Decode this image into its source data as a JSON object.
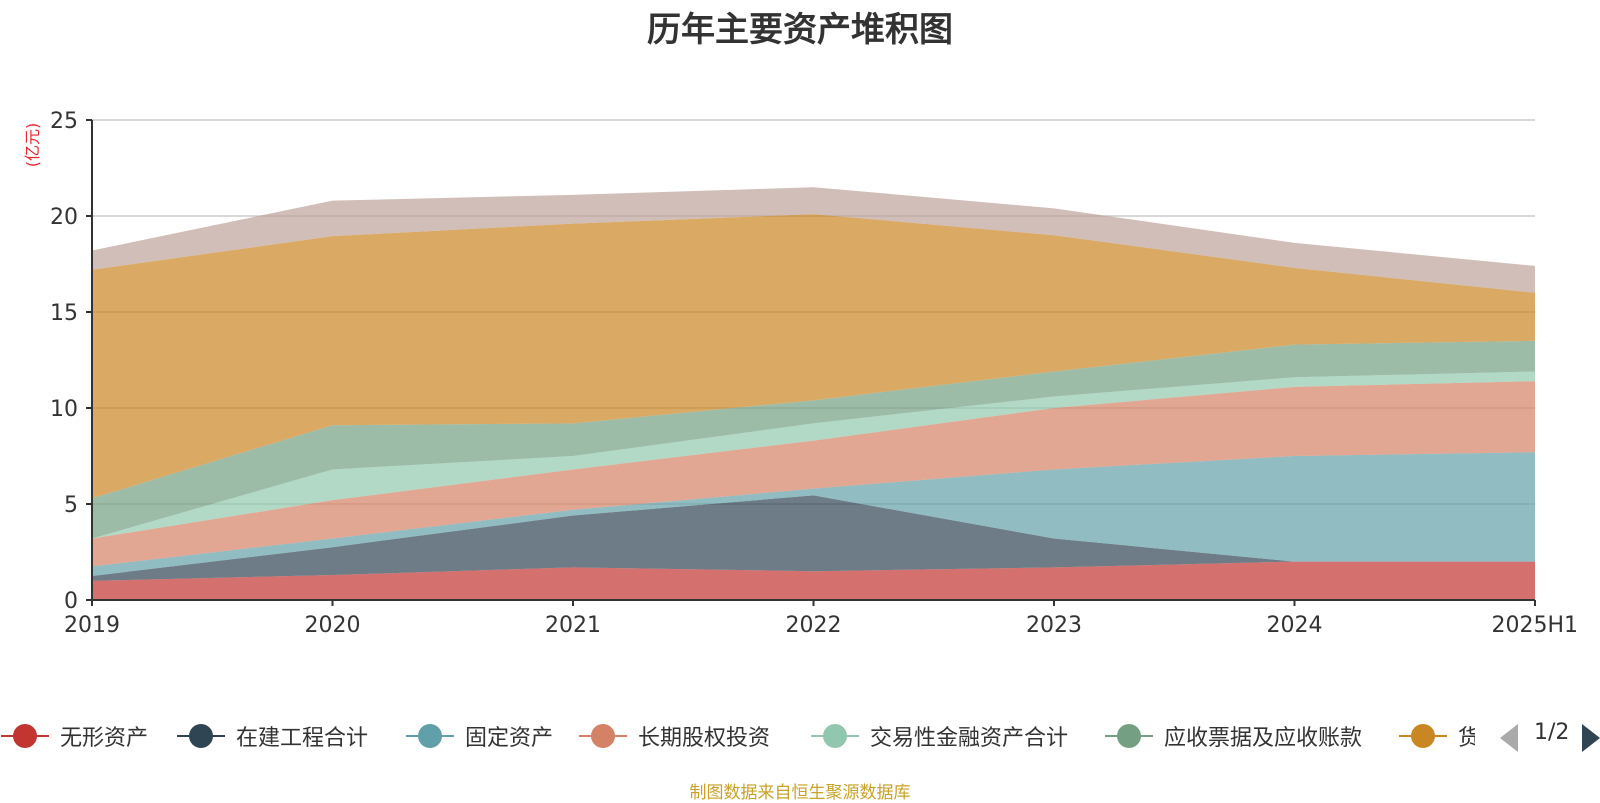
{
  "chart_data": {
    "type": "area",
    "stacked": true,
    "title": "历年主要资产堆积图",
    "ylabel": "(亿元)",
    "ylim": [
      0,
      25
    ],
    "yticks": [
      0,
      5,
      10,
      15,
      20,
      25
    ],
    "categories": [
      "2019",
      "2020",
      "2021",
      "2022",
      "2023",
      "2024",
      "2025H1"
    ],
    "grid": true,
    "legend_position": "bottom",
    "series": [
      {
        "name": "无形资产",
        "color": "#c23531",
        "values": [
          1.0,
          1.3,
          1.7,
          1.5,
          1.7,
          2.0,
          2.0
        ]
      },
      {
        "name": "在建工程合计",
        "color": "#2f4554",
        "values": [
          0.25,
          1.45,
          2.7,
          3.95,
          1.5,
          0.0,
          0.0
        ]
      },
      {
        "name": "固定资产",
        "color": "#61a0a8",
        "values": [
          0.5,
          0.45,
          0.3,
          0.35,
          3.6,
          5.5,
          5.7
        ]
      },
      {
        "name": "长期股权投资",
        "color": "#d48265",
        "values": [
          1.45,
          2.0,
          2.1,
          2.5,
          3.2,
          3.6,
          3.7
        ]
      },
      {
        "name": "交易性金融资产合计",
        "color": "#91c7ae",
        "values": [
          0.0,
          1.6,
          0.7,
          0.9,
          0.6,
          0.5,
          0.5
        ]
      },
      {
        "name": "应收票据及应收账款",
        "color": "#749f83",
        "values": [
          2.1,
          2.3,
          1.7,
          1.2,
          1.3,
          1.7,
          1.6
        ]
      },
      {
        "name": "货",
        "color": "#ca8622",
        "values": [
          11.9,
          9.85,
          10.4,
          9.7,
          7.1,
          4.0,
          2.5
        ]
      },
      {
        "name": "",
        "color": "#bda29a",
        "values": [
          1.0,
          1.85,
          1.5,
          1.4,
          1.4,
          1.3,
          1.4
        ]
      }
    ]
  },
  "legend": {
    "items": [
      {
        "label": "无形资产",
        "color": "#c23531"
      },
      {
        "label": "在建工程合计",
        "color": "#2f4554"
      },
      {
        "label": "固定资产",
        "color": "#61a0a8"
      },
      {
        "label": "长期股权投资",
        "color": "#d48265"
      },
      {
        "label": "交易性金融资产合计",
        "color": "#91c7ae"
      },
      {
        "label": "应收票据及应收账款",
        "color": "#749f83"
      },
      {
        "label": "货",
        "color": "#ca8622"
      }
    ],
    "page_label": "1/2"
  },
  "footer": {
    "source": "制图数据来自恒生聚源数据库"
  }
}
